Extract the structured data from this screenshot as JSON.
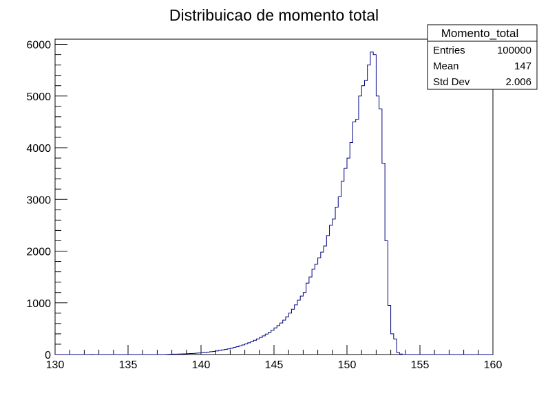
{
  "chart_data": {
    "type": "bar",
    "style": "step-histogram",
    "title": "Distribuicao de momento total",
    "xlabel": "",
    "ylabel": "",
    "xlim": [
      130,
      160
    ],
    "ylim": [
      0,
      6100
    ],
    "x_ticks": [
      "130",
      "135",
      "140",
      "145",
      "150",
      "155",
      "160"
    ],
    "y_ticks": [
      "0",
      "1000",
      "2000",
      "3000",
      "4000",
      "5000",
      "6000"
    ],
    "line_color": "#000080",
    "bin_width": 0.2,
    "bins_start": 132.4,
    "values": [
      2,
      0,
      0,
      0,
      0,
      0,
      0,
      0,
      0,
      0,
      0,
      0,
      0,
      0,
      0,
      0,
      0,
      0,
      0,
      0,
      0,
      0,
      0,
      0,
      0,
      0,
      4,
      6,
      8,
      8,
      10,
      12,
      14,
      16,
      20,
      22,
      26,
      30,
      36,
      40,
      46,
      54,
      60,
      70,
      80,
      90,
      100,
      110,
      122,
      138,
      152,
      168,
      186,
      205,
      228,
      250,
      275,
      302,
      330,
      360,
      395,
      430,
      470,
      515,
      560,
      610,
      665,
      730,
      800,
      875,
      960,
      1050,
      1130,
      1200,
      1380,
      1500,
      1650,
      1750,
      1870,
      1980,
      2100,
      2300,
      2500,
      2620,
      2850,
      3050,
      3350,
      3600,
      3800,
      4100,
      4500,
      4550,
      5000,
      5200,
      5300,
      5600,
      5850,
      5800,
      5000,
      4750,
      3700,
      2200,
      950,
      400,
      300,
      40,
      10,
      0,
      0,
      0,
      0
    ],
    "stats": {
      "name": "Momento_total",
      "rows": [
        {
          "label": "Entries",
          "value": "100000"
        },
        {
          "label": "Mean",
          "value": "147"
        },
        {
          "label": "Std Dev",
          "value": "2.006"
        }
      ]
    }
  }
}
